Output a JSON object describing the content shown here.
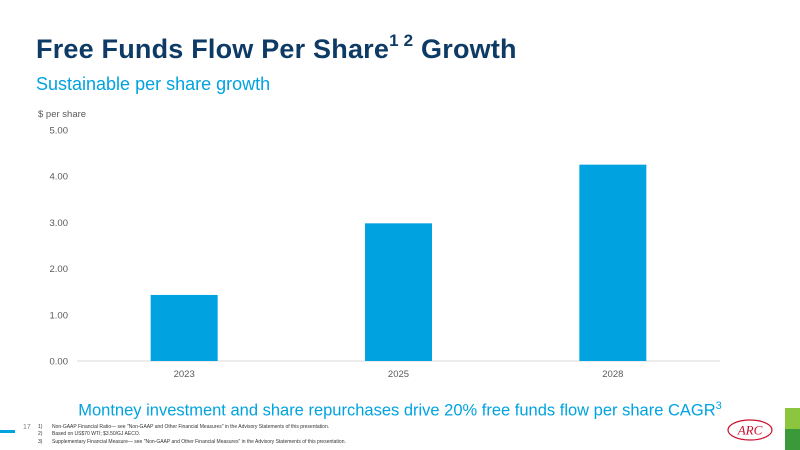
{
  "slide": {
    "title": "Free Funds Flow Per Share",
    "title_superscript": "1 2",
    "title_suffix": " Growth",
    "subtitle": "Sustainable per share growth",
    "caption": "Montney investment and share repurchases drive 20% free funds flow per share CAGR",
    "caption_superscript": "3",
    "page_number": "17",
    "logo_text": "ARC"
  },
  "footnotes": [
    {
      "num": "1)",
      "text": "Non-GAAP Financial Ratio— see \"Non-GAAP and Other Financial Measures\" in the Advisory Statements of this presentation."
    },
    {
      "num": "2)",
      "text": "Based on US$70 WTI; $3.50/GJ AECO."
    },
    {
      "num": "3)",
      "text": "Supplementary Financial Measure— see \"Non-GAAP and Other Financial Measures\" in the Advisory Statements of this presentation."
    }
  ],
  "chart_data": {
    "type": "bar",
    "title": "",
    "ylabel": "$ per share",
    "xlabel": "",
    "categories": [
      "2023",
      "2025",
      "2028"
    ],
    "values": [
      1.43,
      2.98,
      4.25
    ],
    "ylim": [
      0,
      5
    ],
    "yticks": [
      "0.00",
      "1.00",
      "2.00",
      "3.00",
      "4.00",
      "5.00"
    ],
    "grid": false,
    "legend": "none"
  },
  "colors": {
    "title": "#0d3b66",
    "accent": "#00a3e0",
    "bar": "#00a3e0",
    "logo": "#c8102e",
    "green_light": "#8cc63f",
    "green_dark": "#3a9a3a"
  }
}
